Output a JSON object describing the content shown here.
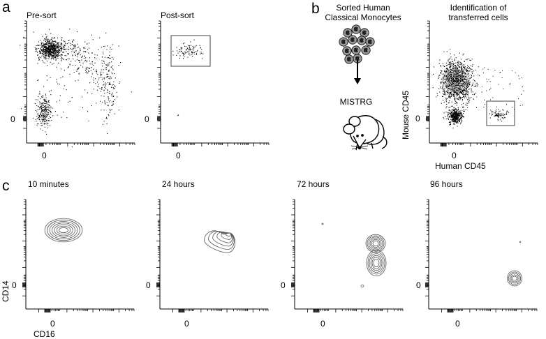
{
  "panel_letters": {
    "a": "a",
    "b": "b",
    "c": "c"
  },
  "panel_a": {
    "pre_sort": {
      "title": "Pre-sort",
      "zero_x": "0",
      "zero_y": "0"
    },
    "post_sort": {
      "title": "Post-sort",
      "zero_x": "0",
      "zero_y": "0"
    }
  },
  "panel_b": {
    "schematic": {
      "cells_label_line1": "Sorted Human",
      "cells_label_line2": "Classical Monocytes",
      "mouse_label": "MISTRG",
      "cell_icon": "monocyte-cluster-icon",
      "arrow_icon": "down-arrow-icon",
      "mouse_icon": "mouse-icon"
    },
    "plot": {
      "title_line1": "Identification of",
      "title_line2": "transferred cells",
      "ylabel": "Mouse CD45",
      "xlabel": "Human CD45",
      "zero_x": "0",
      "zero_y": "0"
    }
  },
  "panel_c": {
    "ylabel": "CD14",
    "xlabel": "CD16",
    "plots": [
      {
        "title": "10 minutes",
        "zero_x": "0",
        "zero_y": "0"
      },
      {
        "title": "24 hours",
        "zero_x": "0",
        "zero_y": "0"
      },
      {
        "title": "72 hours",
        "zero_x": "0",
        "zero_y": "0"
      },
      {
        "title": "96 hours",
        "zero_x": "0",
        "zero_y": "0"
      }
    ]
  },
  "colors": {
    "ink": "#000000",
    "contour": "#555555",
    "cell_fill": "#9a9a9a",
    "gate": "#444444"
  }
}
